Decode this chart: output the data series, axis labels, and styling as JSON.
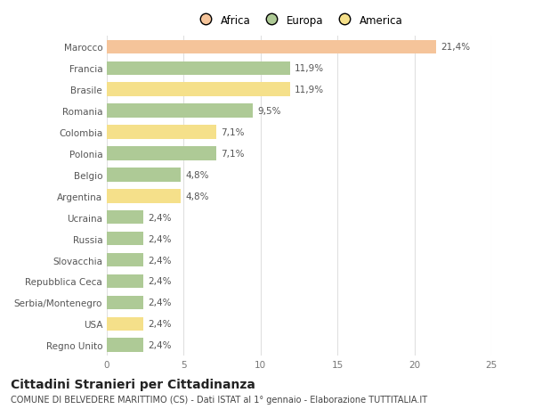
{
  "countries": [
    "Marocco",
    "Francia",
    "Brasile",
    "Romania",
    "Colombia",
    "Polonia",
    "Belgio",
    "Argentina",
    "Ucraina",
    "Russia",
    "Slovacchia",
    "Repubblica Ceca",
    "Serbia/Montenegro",
    "USA",
    "Regno Unito"
  ],
  "values": [
    21.4,
    11.9,
    11.9,
    9.5,
    7.1,
    7.1,
    4.8,
    4.8,
    2.4,
    2.4,
    2.4,
    2.4,
    2.4,
    2.4,
    2.4
  ],
  "labels": [
    "21,4%",
    "11,9%",
    "11,9%",
    "9,5%",
    "7,1%",
    "7,1%",
    "4,8%",
    "4,8%",
    "2,4%",
    "2,4%",
    "2,4%",
    "2,4%",
    "2,4%",
    "2,4%",
    "2,4%"
  ],
  "colors": [
    "#F5C49A",
    "#AECA96",
    "#F5E08A",
    "#AECA96",
    "#F5E08A",
    "#AECA96",
    "#AECA96",
    "#F5E08A",
    "#AECA96",
    "#AECA96",
    "#AECA96",
    "#AECA96",
    "#AECA96",
    "#F5E08A",
    "#AECA96"
  ],
  "legend_labels": [
    "Africa",
    "Europa",
    "America"
  ],
  "legend_colors": [
    "#F5C49A",
    "#AECA96",
    "#F5E08A"
  ],
  "xlim": [
    0,
    25
  ],
  "xticks": [
    0,
    5,
    10,
    15,
    20,
    25
  ],
  "title": "Cittadini Stranieri per Cittadinanza",
  "subtitle": "COMUNE DI BELVEDERE MARITTIMO (CS) - Dati ISTAT al 1° gennaio - Elaborazione TUTTITALIA.IT",
  "bg_color": "#ffffff",
  "grid_color": "#e0e0e0",
  "bar_height": 0.65,
  "label_fontsize": 7.5,
  "tick_fontsize": 7.5,
  "title_fontsize": 10,
  "subtitle_fontsize": 7
}
